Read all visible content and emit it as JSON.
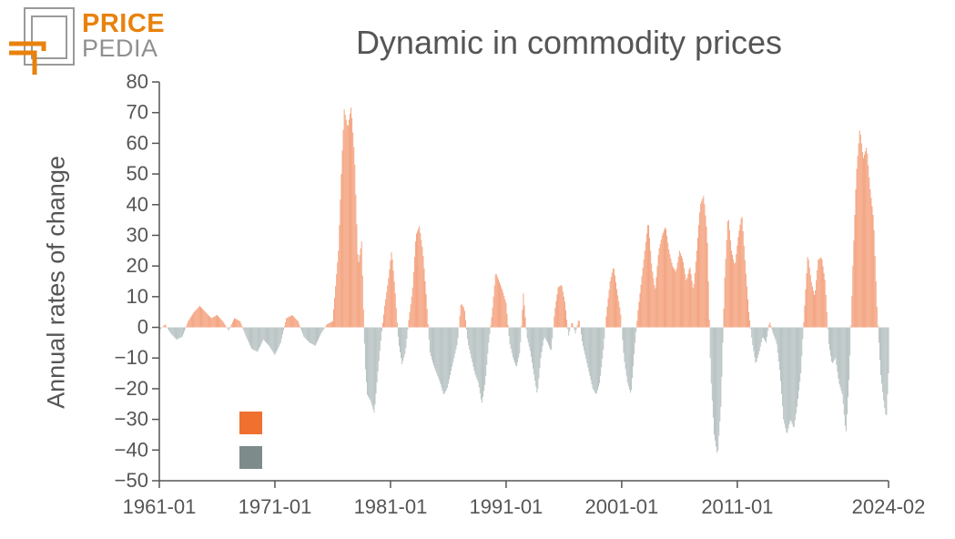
{
  "logo": {
    "word1": "PRICE",
    "word2": "PEDIA",
    "accent_color": "#e8820c",
    "frame_color": "#9a9a9a"
  },
  "chart_data": {
    "type": "bar",
    "title": "Dynamic in commodity prices",
    "ylabel": "Annual rates of change",
    "xlabel": "",
    "ylim": [
      -50,
      80
    ],
    "yticks": [
      80,
      70,
      60,
      50,
      40,
      30,
      20,
      10,
      0,
      -10,
      -20,
      -30,
      -40,
      -50
    ],
    "ytick_labels": [
      "80",
      "70",
      "60",
      "50",
      "40",
      "30",
      "20",
      "10",
      "0",
      "−10",
      "−20",
      "−30",
      "−40",
      "−50"
    ],
    "xticks": [
      {
        "label": "1961-01",
        "t": 1961.0
      },
      {
        "label": "1971-01",
        "t": 1971.0
      },
      {
        "label": "1981-01",
        "t": 1981.0
      },
      {
        "label": "1991-01",
        "t": 1991.0
      },
      {
        "label": "2001-01",
        "t": 2001.0
      },
      {
        "label": "2011-01",
        "t": 2011.0
      },
      {
        "label": "2024-02",
        "t": 2024.083
      }
    ],
    "x_range": [
      1961.0,
      2024.083
    ],
    "grid": false,
    "positive_color": "#f4a582",
    "negative_color": "#b9c3c3",
    "legend": [
      {
        "color": "#f07030"
      },
      {
        "color": "#7d8b8b"
      }
    ],
    "series_points": [
      [
        1961.0,
        -1
      ],
      [
        1961.5,
        1
      ],
      [
        1962.0,
        -2
      ],
      [
        1962.5,
        -4
      ],
      [
        1963.0,
        -3
      ],
      [
        1963.5,
        2
      ],
      [
        1964.0,
        5
      ],
      [
        1964.5,
        7
      ],
      [
        1965.0,
        5
      ],
      [
        1965.5,
        3
      ],
      [
        1966.0,
        4
      ],
      [
        1966.5,
        2
      ],
      [
        1967.0,
        -1
      ],
      [
        1967.5,
        3
      ],
      [
        1968.0,
        2
      ],
      [
        1968.5,
        -3
      ],
      [
        1969.0,
        -7
      ],
      [
        1969.5,
        -8
      ],
      [
        1970.0,
        -4
      ],
      [
        1970.5,
        -6
      ],
      [
        1971.0,
        -9
      ],
      [
        1971.5,
        -5
      ],
      [
        1972.0,
        3
      ],
      [
        1972.5,
        4
      ],
      [
        1973.0,
        2
      ],
      [
        1973.5,
        -3
      ],
      [
        1974.0,
        -5
      ],
      [
        1974.5,
        -6
      ],
      [
        1975.0,
        -2
      ],
      [
        1975.5,
        1
      ],
      [
        1976.0,
        2
      ],
      [
        1976.5,
        25
      ],
      [
        1976.8,
        55
      ],
      [
        1977.0,
        71
      ],
      [
        1977.3,
        65
      ],
      [
        1977.6,
        72
      ],
      [
        1977.9,
        55
      ],
      [
        1978.2,
        20
      ],
      [
        1978.5,
        28
      ],
      [
        1978.8,
        -12
      ],
      [
        1979.0,
        -22
      ],
      [
        1979.3,
        -24
      ],
      [
        1979.6,
        -28
      ],
      [
        1979.9,
        -15
      ],
      [
        1980.2,
        -3
      ],
      [
        1980.5,
        7
      ],
      [
        1980.8,
        15
      ],
      [
        1981.1,
        25
      ],
      [
        1981.4,
        12
      ],
      [
        1981.7,
        -5
      ],
      [
        1982.0,
        -12
      ],
      [
        1982.3,
        -8
      ],
      [
        1982.6,
        3
      ],
      [
        1982.9,
        12
      ],
      [
        1983.2,
        30
      ],
      [
        1983.5,
        33
      ],
      [
        1983.8,
        25
      ],
      [
        1984.1,
        10
      ],
      [
        1984.4,
        -8
      ],
      [
        1984.7,
        -12
      ],
      [
        1985.0,
        -15
      ],
      [
        1985.3,
        -18
      ],
      [
        1985.6,
        -22
      ],
      [
        1985.9,
        -20
      ],
      [
        1986.2,
        -15
      ],
      [
        1986.5,
        -10
      ],
      [
        1986.8,
        -5
      ],
      [
        1987.1,
        8
      ],
      [
        1987.4,
        6
      ],
      [
        1987.7,
        -5
      ],
      [
        1988.0,
        -10
      ],
      [
        1988.3,
        -15
      ],
      [
        1988.6,
        -18
      ],
      [
        1988.9,
        -25
      ],
      [
        1989.2,
        -18
      ],
      [
        1989.5,
        -5
      ],
      [
        1989.8,
        5
      ],
      [
        1990.1,
        18
      ],
      [
        1990.4,
        15
      ],
      [
        1990.7,
        12
      ],
      [
        1991.0,
        8
      ],
      [
        1991.3,
        -5
      ],
      [
        1991.6,
        -10
      ],
      [
        1991.9,
        -13
      ],
      [
        1992.2,
        -8
      ],
      [
        1992.5,
        11
      ],
      [
        1992.8,
        -3
      ],
      [
        1993.1,
        -8
      ],
      [
        1993.4,
        -15
      ],
      [
        1993.7,
        -22
      ],
      [
        1994.0,
        -10
      ],
      [
        1994.3,
        -3
      ],
      [
        1994.6,
        -5
      ],
      [
        1994.9,
        -8
      ],
      [
        1995.2,
        5
      ],
      [
        1995.5,
        13
      ],
      [
        1995.8,
        14
      ],
      [
        1996.1,
        8
      ],
      [
        1996.4,
        -3
      ],
      [
        1996.7,
        2
      ],
      [
        1997.0,
        -2
      ],
      [
        1997.3,
        3
      ],
      [
        1997.6,
        -5
      ],
      [
        1997.9,
        -10
      ],
      [
        1998.2,
        -15
      ],
      [
        1998.5,
        -20
      ],
      [
        1998.8,
        -22
      ],
      [
        1999.1,
        -18
      ],
      [
        1999.4,
        -8
      ],
      [
        1999.7,
        5
      ],
      [
        2000.0,
        15
      ],
      [
        2000.3,
        20
      ],
      [
        2000.6,
        12
      ],
      [
        2000.9,
        5
      ],
      [
        2001.2,
        -10
      ],
      [
        2001.5,
        -18
      ],
      [
        2001.8,
        -22
      ],
      [
        2002.1,
        -8
      ],
      [
        2002.4,
        5
      ],
      [
        2002.7,
        15
      ],
      [
        2003.0,
        25
      ],
      [
        2003.3,
        35
      ],
      [
        2003.6,
        20
      ],
      [
        2003.9,
        12
      ],
      [
        2004.2,
        25
      ],
      [
        2004.5,
        30
      ],
      [
        2004.8,
        33
      ],
      [
        2005.1,
        25
      ],
      [
        2005.4,
        20
      ],
      [
        2005.7,
        18
      ],
      [
        2006.0,
        25
      ],
      [
        2006.3,
        22
      ],
      [
        2006.6,
        15
      ],
      [
        2006.9,
        20
      ],
      [
        2007.2,
        12
      ],
      [
        2007.5,
        25
      ],
      [
        2007.8,
        40
      ],
      [
        2008.1,
        43
      ],
      [
        2008.4,
        30
      ],
      [
        2008.7,
        -15
      ],
      [
        2009.0,
        -35
      ],
      [
        2009.3,
        -42
      ],
      [
        2009.6,
        -25
      ],
      [
        2009.9,
        15
      ],
      [
        2010.2,
        37
      ],
      [
        2010.5,
        25
      ],
      [
        2010.8,
        20
      ],
      [
        2011.1,
        30
      ],
      [
        2011.4,
        37
      ],
      [
        2011.7,
        20
      ],
      [
        2012.0,
        5
      ],
      [
        2012.3,
        -5
      ],
      [
        2012.6,
        -12
      ],
      [
        2012.9,
        -8
      ],
      [
        2013.2,
        -3
      ],
      [
        2013.5,
        -5
      ],
      [
        2013.8,
        2
      ],
      [
        2014.1,
        -2
      ],
      [
        2014.4,
        -5
      ],
      [
        2014.7,
        -15
      ],
      [
        2015.0,
        -30
      ],
      [
        2015.3,
        -35
      ],
      [
        2015.6,
        -30
      ],
      [
        2015.9,
        -33
      ],
      [
        2016.2,
        -25
      ],
      [
        2016.5,
        -15
      ],
      [
        2016.8,
        5
      ],
      [
        2017.1,
        24
      ],
      [
        2017.4,
        15
      ],
      [
        2017.7,
        10
      ],
      [
        2018.0,
        22
      ],
      [
        2018.3,
        23
      ],
      [
        2018.6,
        15
      ],
      [
        2018.9,
        -5
      ],
      [
        2019.2,
        -12
      ],
      [
        2019.5,
        -10
      ],
      [
        2019.8,
        -18
      ],
      [
        2020.1,
        -22
      ],
      [
        2020.4,
        -35
      ],
      [
        2020.7,
        -15
      ],
      [
        2021.0,
        20
      ],
      [
        2021.3,
        50
      ],
      [
        2021.6,
        65
      ],
      [
        2021.9,
        55
      ],
      [
        2022.2,
        59
      ],
      [
        2022.5,
        45
      ],
      [
        2022.8,
        35
      ],
      [
        2023.1,
        5
      ],
      [
        2023.4,
        -15
      ],
      [
        2023.7,
        -25
      ],
      [
        2023.9,
        -30
      ],
      [
        2024.083,
        -15
      ]
    ]
  }
}
